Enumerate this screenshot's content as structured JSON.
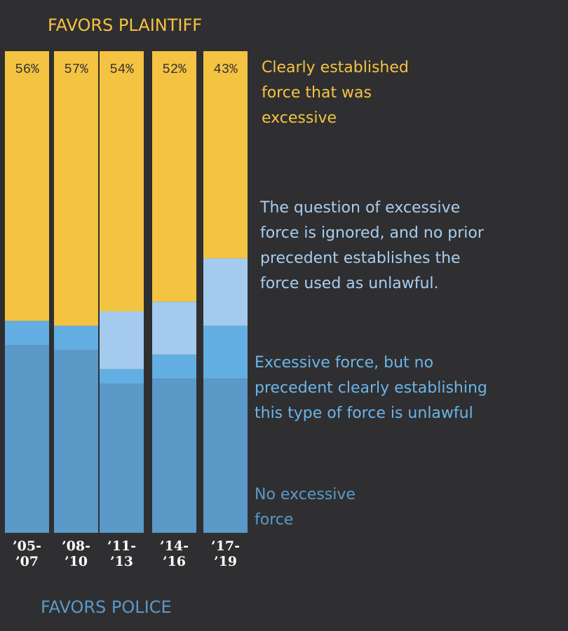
{
  "chart_data": {
    "type": "stacked_bar",
    "top_label": "FAVORS PLAINTIFF",
    "bottom_label": "FAVORS POLICE",
    "categories": [
      "’05-\n’07",
      "’08-\n’10",
      "’11-\n’13",
      "’14-\n’16",
      "’17-\n’19"
    ],
    "ylim": [
      0,
      100
    ],
    "series": [
      {
        "name": "No excessive force",
        "color": "#5b99c9",
        "text_color": "#5b99c9",
        "values": [
          39,
          38,
          31,
          32,
          32
        ]
      },
      {
        "name": "Excessive force, but no precedent clearly establishing this type of force is unlawful",
        "color": "#63aee2",
        "text_color": "#6cb4e8",
        "values": [
          5,
          5,
          3,
          5,
          11
        ]
      },
      {
        "name": "The question of excessive force is ignored, and no prior precedent establishes the force used as unlawful.",
        "color": "#a4cbed",
        "text_color": "#a8cdf0",
        "values": [
          0,
          0,
          12,
          11,
          14
        ]
      },
      {
        "name": "Clearly established force that was excessive",
        "color": "#f5c342",
        "text_color": "#f5c342",
        "values": [
          56,
          57,
          54,
          52,
          43
        ],
        "value_labels": [
          "56%",
          "57%",
          "54%",
          "52%",
          "43%"
        ]
      }
    ]
  }
}
